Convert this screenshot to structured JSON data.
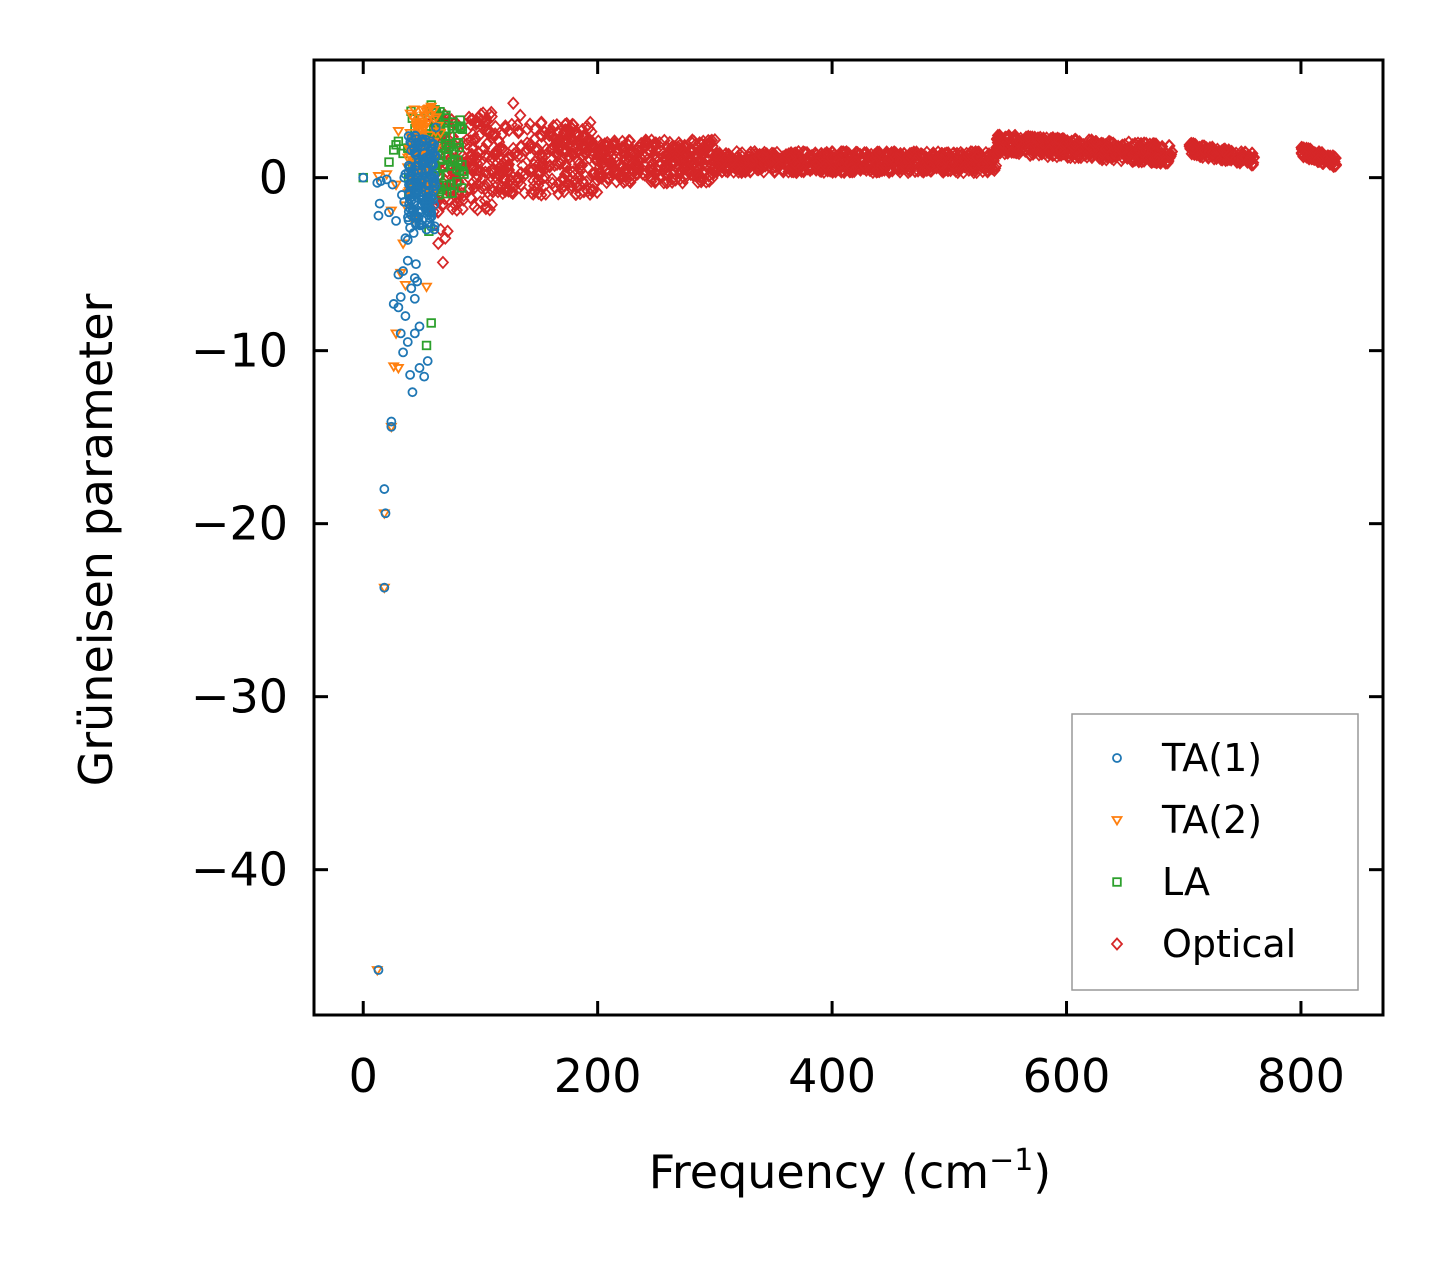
{
  "chart_data": {
    "type": "scatter",
    "title": "",
    "xlabel": "Frequency (cm",
    "xlabel_sup": "−1",
    "xlabel_tail": ")",
    "ylabel": "Grüneisen parameter",
    "xlim": [
      -42,
      870
    ],
    "ylim": [
      -48.4,
      6.8
    ],
    "x_ticks": [
      0,
      200,
      400,
      600,
      800
    ],
    "x_tick_labels": [
      "0",
      "200",
      "400",
      "600",
      "800"
    ],
    "y_ticks": [
      0,
      -10,
      -20,
      -30,
      -40
    ],
    "y_tick_labels": [
      "0",
      "−10",
      "−20",
      "−30",
      "−40"
    ],
    "grid": false,
    "legend_position": "lower-right",
    "series": [
      {
        "name": "TA(1)",
        "marker": "circle",
        "color": "#1f77b4",
        "x": [
          0,
          12,
          13,
          14,
          15,
          18,
          20,
          22,
          24,
          26,
          28,
          30,
          30,
          32,
          32,
          34,
          34,
          35,
          36,
          36,
          38,
          38,
          40,
          40,
          41,
          42,
          42,
          43,
          44,
          44,
          45,
          46,
          47,
          48,
          50,
          52,
          54,
          56,
          58,
          60,
          62,
          18,
          19,
          24,
          25,
          13,
          33,
          38,
          44,
          48,
          55,
          36,
          40,
          47,
          52,
          42,
          46,
          50,
          54,
          58,
          35,
          39,
          43,
          47,
          51
        ],
        "y": [
          0,
          -0.3,
          -2.2,
          -1.5,
          -0.2,
          -18.0,
          -0.1,
          -2.0,
          -14.1,
          -7.3,
          -2.5,
          -5.6,
          -7.5,
          -6.9,
          -9.0,
          -10.1,
          -5.4,
          -1.4,
          -3.5,
          -8.0,
          -4.8,
          -9.5,
          -11.4,
          -2.9,
          -6.4,
          -12.4,
          -0.5,
          -3.2,
          -7.0,
          -9.0,
          -5.0,
          -6.0,
          -2.0,
          -11.0,
          -1.0,
          -11.5,
          -3.0,
          -1.2,
          0.8,
          1.9,
          2.9,
          -23.7,
          -19.4,
          -14.4,
          -0.4,
          -45.8,
          -1.0,
          -3.6,
          -5.8,
          -8.6,
          -10.6,
          0.2,
          0.6,
          1.1,
          1.4,
          -1.8,
          -0.8,
          0.4,
          0.9,
          1.7,
          0.0,
          -0.4,
          0.3,
          0.7,
          1.0
        ]
      },
      {
        "name": "TA(2)",
        "marker": "triangle-down",
        "color": "#ff7f0e",
        "x": [
          12,
          18,
          18,
          20,
          24,
          26,
          28,
          30,
          32,
          34,
          36,
          38,
          40,
          42,
          44,
          46,
          48,
          50,
          52,
          54,
          56,
          58,
          60,
          62,
          64,
          66,
          30,
          36,
          42,
          48,
          54,
          13,
          24,
          28
        ],
        "y": [
          -45.8,
          -23.7,
          -19.4,
          0.2,
          -14.4,
          -10.9,
          -9.0,
          2.7,
          -5.5,
          -3.8,
          -1.6,
          0.6,
          1.2,
          1.8,
          2.3,
          2.8,
          3.1,
          3.4,
          3.6,
          3.8,
          4.0,
          4.1,
          3.9,
          3.5,
          3.0,
          2.6,
          -11.0,
          -6.2,
          -2.4,
          1.5,
          -6.3,
          0.1,
          -1.9,
          -0.4
        ],
        "extra": "dense band 40-65 cm-1 at 0 to 4"
      },
      {
        "name": "LA",
        "marker": "square",
        "color": "#2ca02c",
        "x": [
          0,
          22,
          26,
          28,
          30,
          34,
          38,
          42,
          46,
          50,
          54,
          58,
          62,
          66,
          70,
          74,
          78,
          82,
          86,
          58,
          56,
          54,
          60,
          64,
          68,
          72,
          76,
          80
        ],
        "y": [
          0,
          0.9,
          1.6,
          1.9,
          2.1,
          1.4,
          1.7,
          0.9,
          1.2,
          1.8,
          2.3,
          4.2,
          3.6,
          3.0,
          2.4,
          1.8,
          1.0,
          0.4,
          0.2,
          -8.4,
          -3.1,
          -9.7,
          -0.6,
          0.1,
          0.6,
          1.2,
          0.9,
          0.5
        ]
      },
      {
        "name": "Optical",
        "marker": "diamond",
        "color": "#d62728",
        "x": [
          60,
          64,
          66,
          68,
          70,
          72,
          76,
          80,
          128,
          134,
          140,
          146,
          152,
          160
        ],
        "y": [
          2.0,
          -3.8,
          -3.0,
          -4.9,
          -3.5,
          -3.1,
          -1.8,
          -1.2,
          4.3,
          3.6,
          2.8,
          2.2,
          3.2,
          2.5
        ],
        "bands": [
          {
            "x": [
              60,
              110
            ],
            "y": [
              -2,
              3.8
            ]
          },
          {
            "x": [
              110,
              200
            ],
            "y": [
              -1,
              3.2
            ]
          },
          {
            "x": [
              200,
              300
            ],
            "y": [
              -0.3,
              2.2
            ]
          },
          {
            "x": [
              300,
              540
            ],
            "y": [
              0.3,
              1.5
            ]
          },
          {
            "x": [
              540,
              690
            ],
            "y": [
              1.4,
              2.5
            ]
          },
          {
            "x": [
              705,
              760
            ],
            "y": [
              1.3,
              2.0
            ]
          },
          {
            "x": [
              800,
              830
            ],
            "y": [
              1.2,
              1.8
            ]
          }
        ]
      }
    ]
  }
}
